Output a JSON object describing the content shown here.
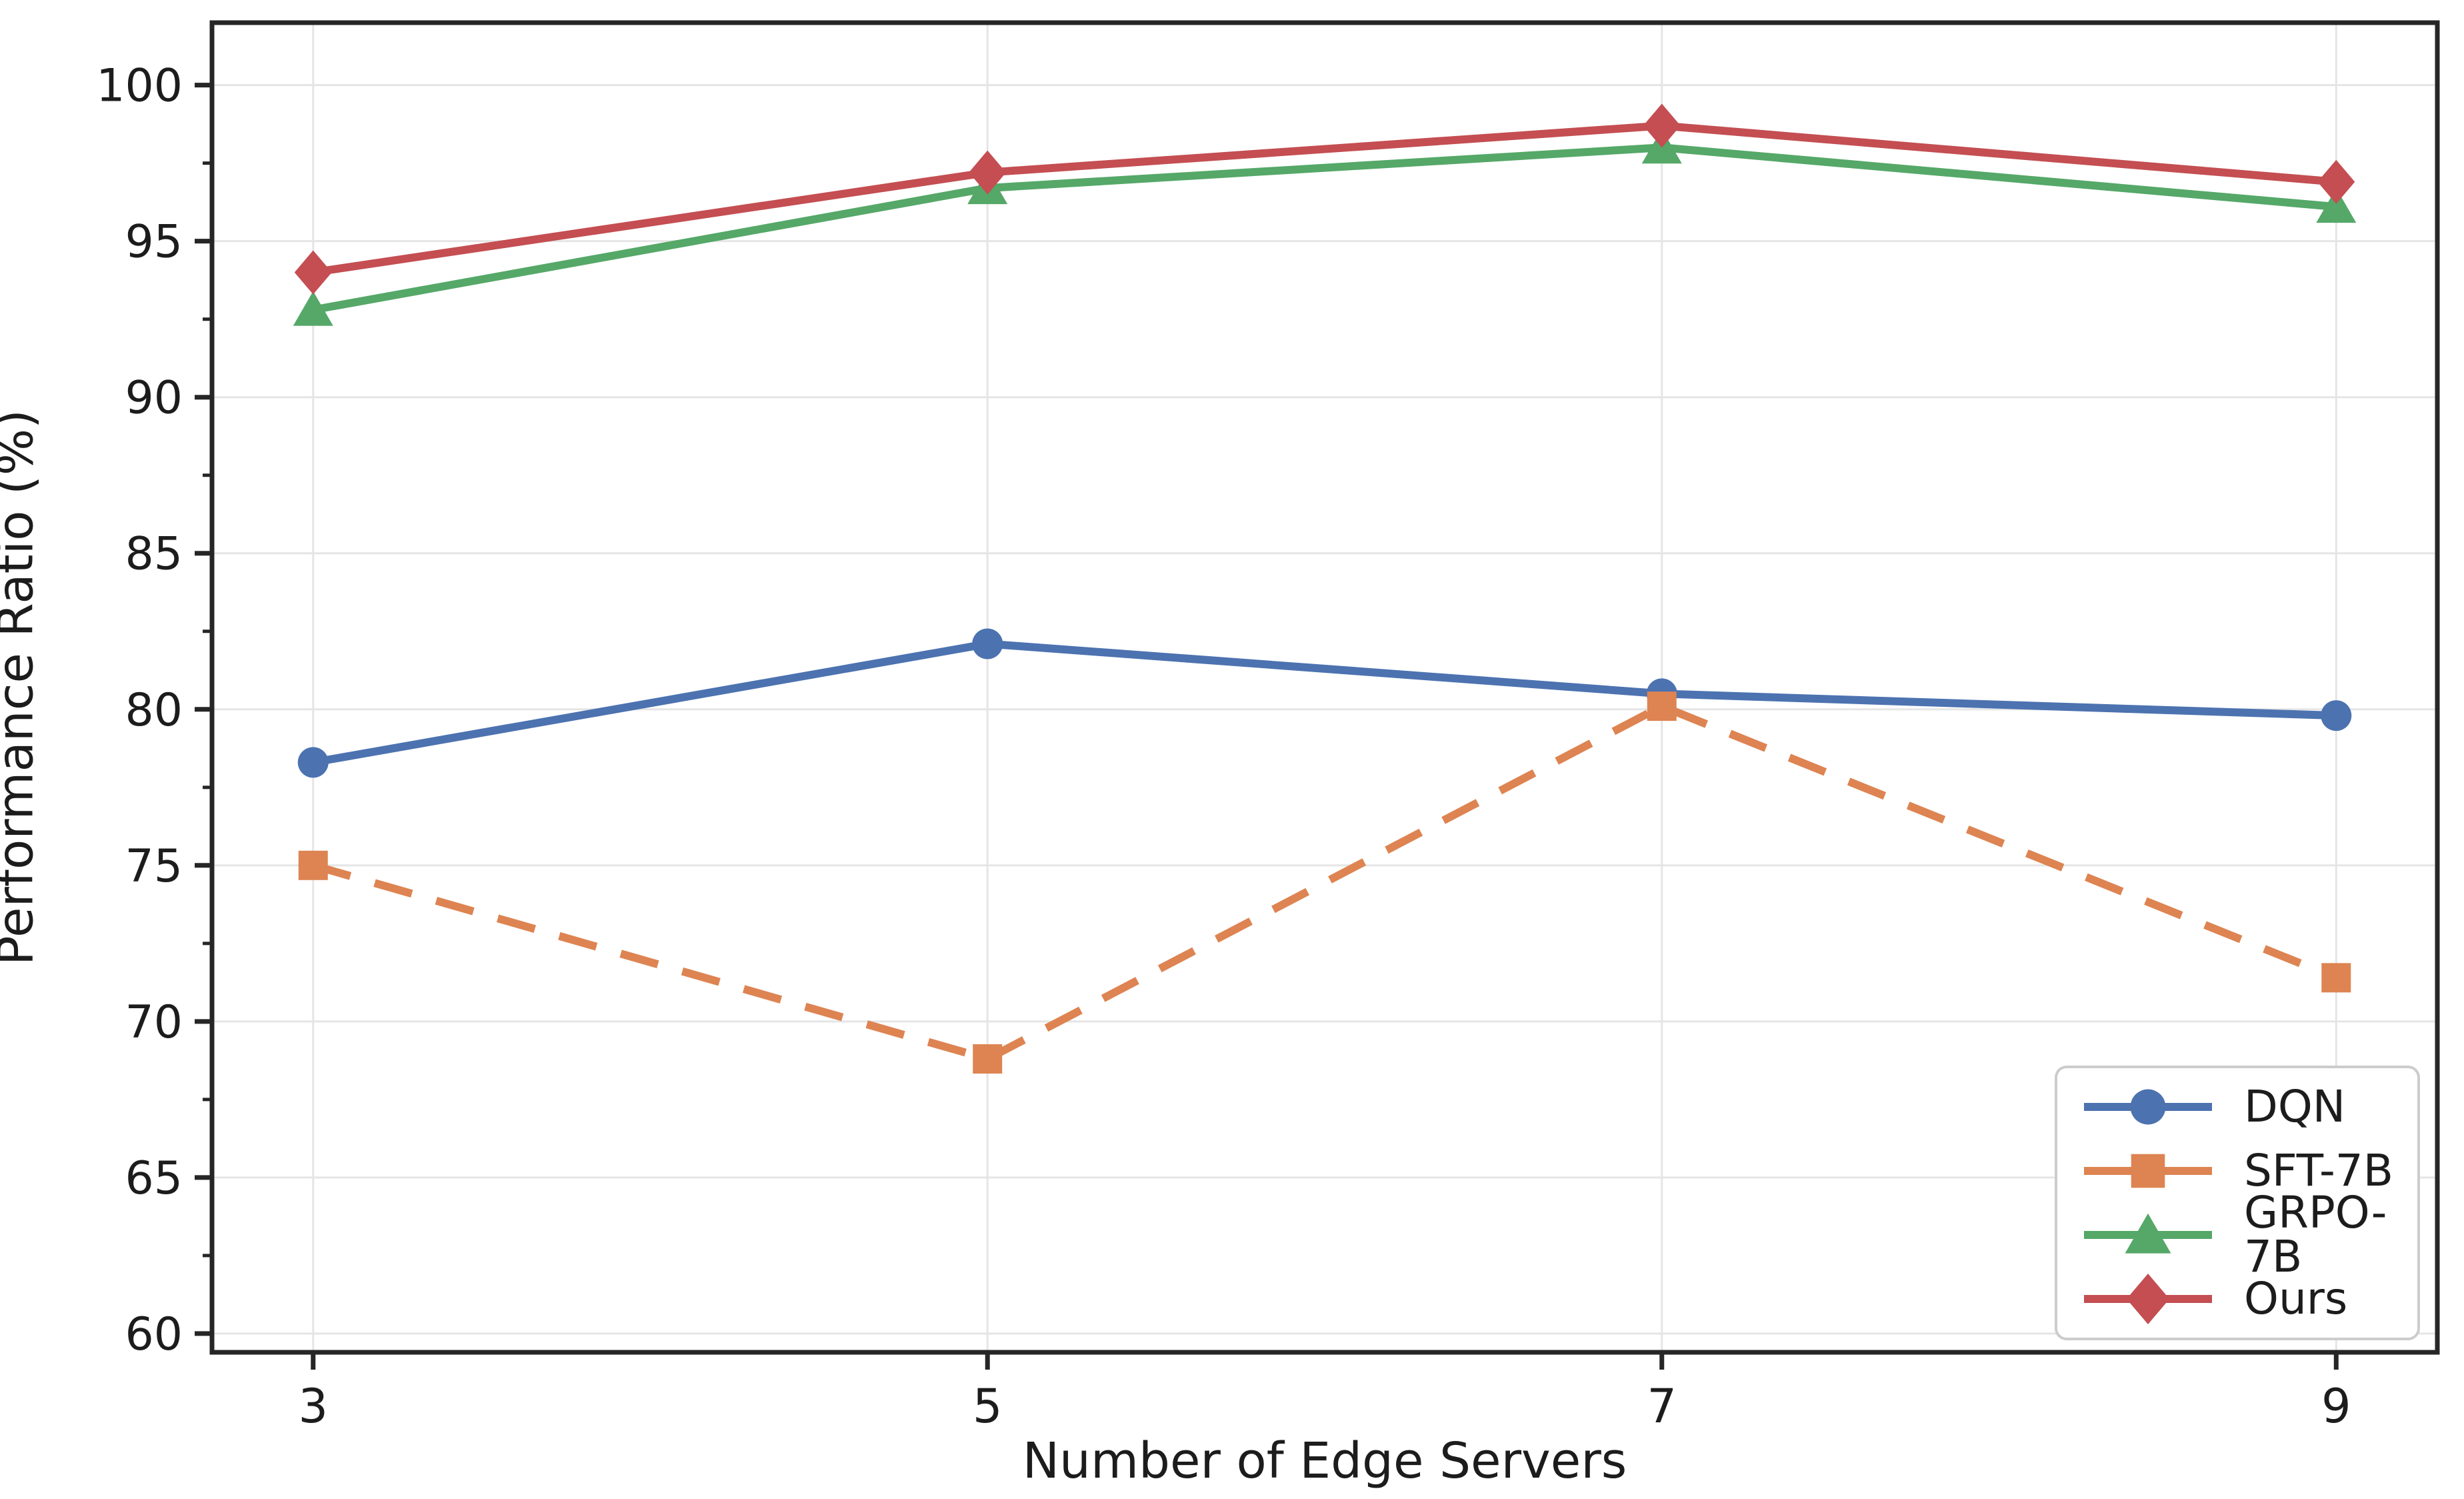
{
  "chart_data": {
    "type": "line",
    "title": "",
    "xlabel": "Number of Edge Servers",
    "ylabel": "Performance Ratio (%)",
    "x": [
      3,
      5,
      7,
      9
    ],
    "xtick_labels": [
      "3",
      "5",
      "7",
      "9"
    ],
    "yticks": [
      60,
      65,
      70,
      75,
      80,
      85,
      90,
      95,
      100
    ],
    "xlim": [
      2.7,
      9.3
    ],
    "ylim": [
      59.4,
      102.0
    ],
    "grid": true,
    "legend_position": "lower right",
    "series": [
      {
        "name": "DQN",
        "color": "#4C72B0",
        "marker": "circle",
        "linestyle": "solid",
        "values": [
          78.3,
          82.1,
          80.5,
          79.8
        ]
      },
      {
        "name": "SFT-7B",
        "color": "#DD8452",
        "marker": "square",
        "linestyle": "dashed",
        "values": [
          75.0,
          68.8,
          80.1,
          71.4
        ]
      },
      {
        "name": "GRPO-7B",
        "color": "#55A868",
        "marker": "triangle",
        "linestyle": "solid",
        "values": [
          92.8,
          96.7,
          98.0,
          96.1
        ]
      },
      {
        "name": "Ours",
        "color": "#C44E52",
        "marker": "diamond",
        "linestyle": "solid",
        "values": [
          94.0,
          97.2,
          98.7,
          96.9
        ]
      }
    ]
  },
  "style": {
    "grid_color": "#e5e5e5",
    "spine_color": "#262626",
    "tick_color": "#262626",
    "text_color": "#1c1c1c",
    "background": "#ffffff"
  }
}
